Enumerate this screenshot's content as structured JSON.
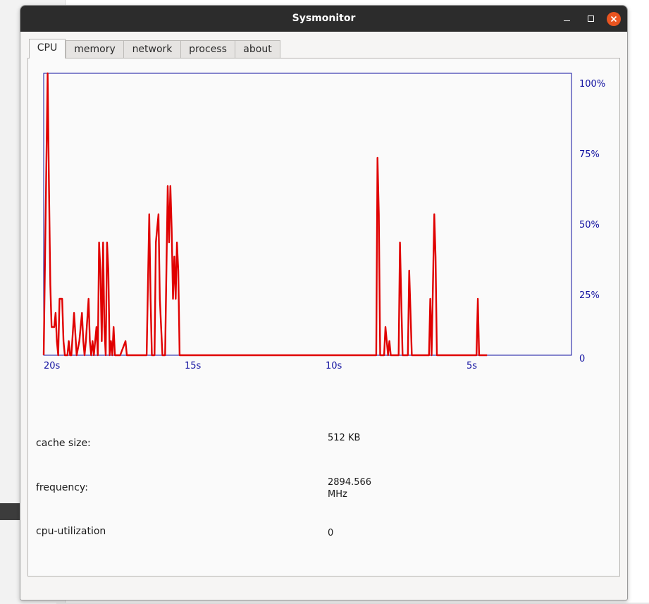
{
  "window": {
    "title": "Sysmonitor"
  },
  "tabs": [
    {
      "label": "CPU",
      "active": true
    },
    {
      "label": "memory",
      "active": false
    },
    {
      "label": "network",
      "active": false
    },
    {
      "label": "process",
      "active": false
    },
    {
      "label": "about",
      "active": false
    }
  ],
  "chart_data": {
    "type": "line",
    "title": "",
    "xlabel": "",
    "ylabel": "",
    "x_tick_labels": [
      "20s",
      "15s",
      "10s",
      "5s"
    ],
    "y_tick_labels": [
      "100%",
      "75%",
      "50%",
      "25%",
      "0"
    ],
    "ylim": [
      0,
      100
    ],
    "xlim_seconds_ago": [
      20,
      0
    ],
    "grid": false,
    "colors": {
      "series": "#e00000",
      "axis": "#1010a0"
    },
    "series": [
      {
        "points": [
          [
            20.0,
            0
          ],
          [
            19.85,
            100
          ],
          [
            19.8,
            60
          ],
          [
            19.75,
            25
          ],
          [
            19.7,
            10
          ],
          [
            19.6,
            10
          ],
          [
            19.55,
            15
          ],
          [
            19.5,
            5
          ],
          [
            19.45,
            0
          ],
          [
            19.4,
            20
          ],
          [
            19.3,
            20
          ],
          [
            19.25,
            5
          ],
          [
            19.2,
            0
          ],
          [
            19.1,
            0
          ],
          [
            19.05,
            5
          ],
          [
            19.0,
            0
          ],
          [
            18.95,
            0
          ],
          [
            18.85,
            15
          ],
          [
            18.75,
            0
          ],
          [
            18.65,
            5
          ],
          [
            18.55,
            15
          ],
          [
            18.5,
            5
          ],
          [
            18.45,
            0
          ],
          [
            18.4,
            5
          ],
          [
            18.3,
            20
          ],
          [
            18.25,
            5
          ],
          [
            18.2,
            0
          ],
          [
            18.15,
            5
          ],
          [
            18.1,
            0
          ],
          [
            18.0,
            10
          ],
          [
            17.95,
            0
          ],
          [
            17.9,
            40
          ],
          [
            17.85,
            30
          ],
          [
            17.8,
            5
          ],
          [
            17.75,
            40
          ],
          [
            17.7,
            10
          ],
          [
            17.65,
            0
          ],
          [
            17.6,
            40
          ],
          [
            17.55,
            30
          ],
          [
            17.5,
            0
          ],
          [
            17.45,
            5
          ],
          [
            17.4,
            0
          ],
          [
            17.35,
            10
          ],
          [
            17.3,
            0
          ],
          [
            17.1,
            0
          ],
          [
            16.9,
            5
          ],
          [
            16.85,
            0
          ],
          [
            16.5,
            0
          ],
          [
            16.1,
            0
          ],
          [
            16.0,
            50
          ],
          [
            15.95,
            20
          ],
          [
            15.9,
            0
          ],
          [
            15.8,
            0
          ],
          [
            15.75,
            40
          ],
          [
            15.65,
            50
          ],
          [
            15.6,
            20
          ],
          [
            15.5,
            0
          ],
          [
            15.4,
            0
          ],
          [
            15.3,
            60
          ],
          [
            15.25,
            40
          ],
          [
            15.2,
            60
          ],
          [
            15.15,
            45
          ],
          [
            15.1,
            20
          ],
          [
            15.05,
            35
          ],
          [
            15.0,
            20
          ],
          [
            14.95,
            40
          ],
          [
            14.9,
            30
          ],
          [
            14.85,
            0
          ],
          [
            14.7,
            0
          ],
          [
            10.0,
            0
          ],
          [
            8.0,
            0
          ],
          [
            7.4,
            0
          ],
          [
            7.35,
            70
          ],
          [
            7.3,
            50
          ],
          [
            7.25,
            0
          ],
          [
            7.1,
            0
          ],
          [
            7.05,
            10
          ],
          [
            6.95,
            0
          ],
          [
            6.9,
            5
          ],
          [
            6.85,
            0
          ],
          [
            6.7,
            0
          ],
          [
            6.55,
            0
          ],
          [
            6.5,
            40
          ],
          [
            6.45,
            20
          ],
          [
            6.4,
            0
          ],
          [
            6.2,
            0
          ],
          [
            6.15,
            30
          ],
          [
            6.1,
            15
          ],
          [
            6.05,
            0
          ],
          [
            5.4,
            0
          ],
          [
            5.35,
            20
          ],
          [
            5.3,
            0
          ],
          [
            5.25,
            25
          ],
          [
            5.2,
            50
          ],
          [
            5.15,
            35
          ],
          [
            5.1,
            0
          ],
          [
            4.8,
            0
          ],
          [
            3.6,
            0
          ],
          [
            3.55,
            20
          ],
          [
            3.5,
            0
          ],
          [
            3.4,
            0
          ],
          [
            3.3,
            0
          ],
          [
            3.2,
            0
          ]
        ]
      }
    ]
  },
  "info": [
    {
      "label": "cache size:",
      "value": "512 KB"
    },
    {
      "label": "frequency:",
      "value_lines": [
        "2894.566",
        "MHz"
      ]
    },
    {
      "label": "cpu-utilization",
      "value": "0"
    }
  ]
}
